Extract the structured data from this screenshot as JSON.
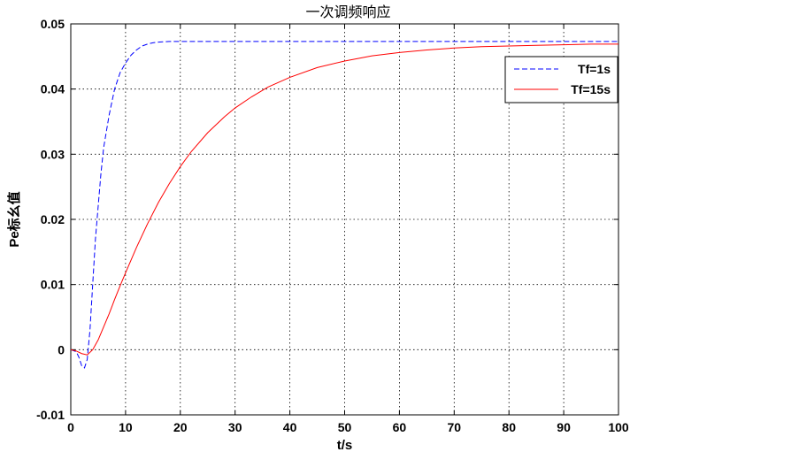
{
  "chart_data": {
    "type": "line",
    "title": "一次调频响应",
    "xlabel": "t/s",
    "ylabel": "Pe标幺值",
    "xlim": [
      0,
      100
    ],
    "ylim": [
      -0.01,
      0.05
    ],
    "xticks": [
      "0",
      "10",
      "20",
      "30",
      "40",
      "50",
      "60",
      "70",
      "80",
      "90",
      "100"
    ],
    "yticks": [
      "-0.01",
      "0",
      "0.01",
      "0.02",
      "0.03",
      "0.04",
      "0.05"
    ],
    "grid": true,
    "legend_position": "top-right",
    "series": [
      {
        "name": "Tf=1s",
        "color": "#0000ff",
        "style": "dashed",
        "x": [
          0,
          1,
          1.5,
          2,
          2.5,
          3,
          3.5,
          4,
          4.5,
          5,
          5.5,
          6,
          7,
          8,
          9,
          10,
          11,
          12,
          13,
          14,
          15,
          16,
          18,
          20,
          25,
          30,
          40,
          50,
          60,
          70,
          80,
          90,
          100
        ],
        "y": [
          0,
          -0.0003,
          -0.0012,
          -0.0025,
          -0.0028,
          -0.0015,
          0.003,
          0.01,
          0.017,
          0.022,
          0.027,
          0.031,
          0.036,
          0.04,
          0.0425,
          0.044,
          0.0452,
          0.046,
          0.0466,
          0.0469,
          0.0471,
          0.0472,
          0.0473,
          0.0473,
          0.0473,
          0.0473,
          0.0473,
          0.0473,
          0.0473,
          0.0473,
          0.0473,
          0.0473,
          0.0473
        ]
      },
      {
        "name": "Tf=15s",
        "color": "#ff0000",
        "style": "solid",
        "x": [
          0,
          1,
          2,
          3,
          4,
          5,
          6,
          7,
          8,
          9,
          10,
          12,
          14,
          16,
          18,
          20,
          22,
          25,
          28,
          30,
          33,
          36,
          40,
          45,
          50,
          55,
          60,
          65,
          70,
          75,
          80,
          85,
          90,
          95,
          100
        ],
        "y": [
          0,
          -0.0002,
          -0.0006,
          -0.0008,
          0,
          0.0015,
          0.0035,
          0.0055,
          0.0077,
          0.0098,
          0.0118,
          0.0157,
          0.0193,
          0.0226,
          0.0255,
          0.0281,
          0.0304,
          0.0333,
          0.0357,
          0.0371,
          0.0388,
          0.0403,
          0.0418,
          0.0433,
          0.0443,
          0.0451,
          0.0456,
          0.046,
          0.0463,
          0.0465,
          0.0466,
          0.0467,
          0.0468,
          0.0469,
          0.0469
        ]
      }
    ]
  }
}
